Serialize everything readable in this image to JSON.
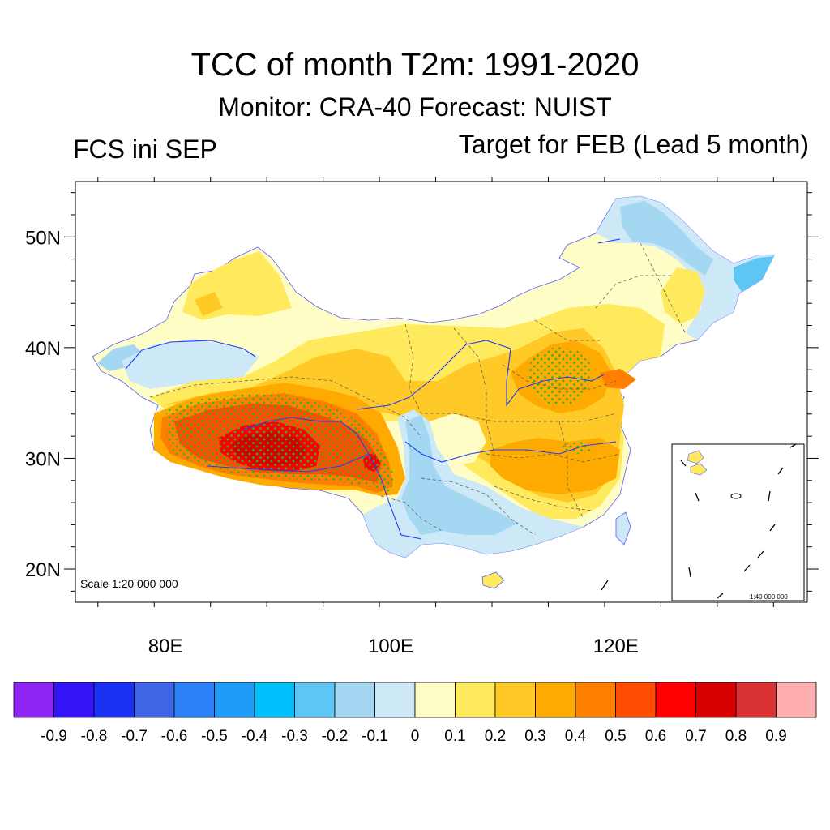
{
  "title": "TCC of month T2m: 1991-2020",
  "subtitle": "Monitor: CRA-40   Forecast: NUIST",
  "left_label": "FCS ini SEP",
  "right_label": "Target for FEB (Lead 5 month)",
  "map": {
    "scale_main": "Scale 1:20 000 000",
    "scale_inset": "1:40 000 000",
    "lat_ticks": [
      {
        "label": "50N",
        "value": 50
      },
      {
        "label": "40N",
        "value": 40
      },
      {
        "label": "30N",
        "value": 30
      },
      {
        "label": "20N",
        "value": 20
      }
    ],
    "lon_ticks": [
      {
        "label": "80E",
        "value": 80
      },
      {
        "label": "100E",
        "value": 100
      },
      {
        "label": "120E",
        "value": 120
      }
    ],
    "lon_range": [
      72,
      137
    ],
    "lat_range": [
      17,
      55
    ]
  },
  "colorbar": {
    "colors": [
      "#8f25f2",
      "#3214f6",
      "#1a31f4",
      "#3f65e4",
      "#2c81f6",
      "#1e9cf8",
      "#00c0fb",
      "#5ec6f4",
      "#a3d7f2",
      "#cde9f7",
      "#fffdc6",
      "#ffea5e",
      "#ffca28",
      "#ffaa00",
      "#ff8000",
      "#ff4c00",
      "#ff0000",
      "#d80000",
      "#da3232",
      "#ffafaf"
    ],
    "labels": [
      "-0.9",
      "-0.8",
      "-0.7",
      "-0.6",
      "-0.5",
      "-0.4",
      "-0.3",
      "-0.2",
      "-0.1",
      "0",
      "0.1",
      "0.2",
      "0.3",
      "0.4",
      "0.5",
      "0.6",
      "0.7",
      "0.8",
      "0.9"
    ]
  }
}
